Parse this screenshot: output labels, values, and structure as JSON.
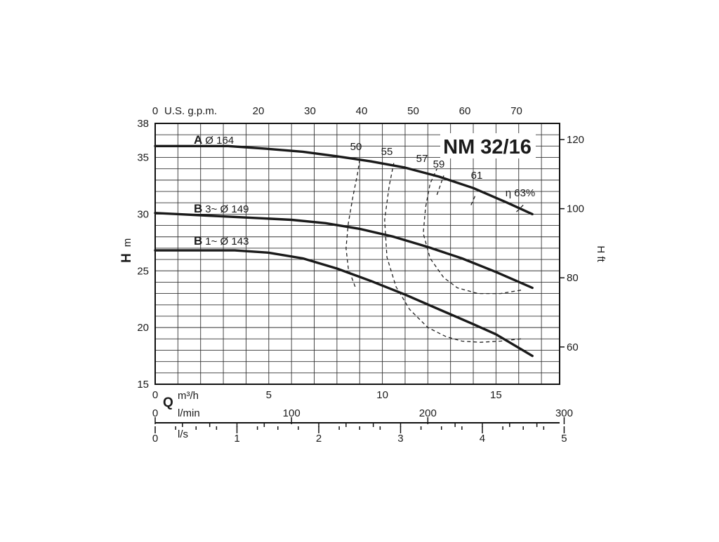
{
  "chart_data": {
    "type": "line",
    "title": "NM 32/16",
    "x": {
      "name": "Q",
      "unit": "m³/h",
      "ticks": [
        0,
        5,
        10,
        15
      ],
      "range": [
        0,
        17.8
      ]
    },
    "y": {
      "name": "H",
      "unit": "m",
      "ticks": [
        15,
        20,
        25,
        30,
        35,
        38
      ],
      "range": [
        15,
        38
      ]
    },
    "y_ft": {
      "name": "H",
      "unit": "ft",
      "ticks": [
        60,
        80,
        100,
        120
      ]
    },
    "x_gpm": {
      "label": "U.S. g.p.m.",
      "ticks": [
        0,
        20,
        30,
        40,
        50,
        60,
        70
      ]
    },
    "x_lmin": {
      "label": "l/min",
      "ticks": [
        0,
        100,
        200,
        300
      ]
    },
    "x_ls": {
      "label": "l/s",
      "ticks": [
        0,
        1,
        2,
        3,
        4,
        5
      ]
    },
    "grid": true,
    "series": [
      {
        "name": "A Ø 164",
        "code": "A",
        "label": "Ø 164",
        "points": [
          [
            0,
            36.0
          ],
          [
            2,
            36.0
          ],
          [
            3.2,
            36.0
          ],
          [
            5,
            35.75
          ],
          [
            6.5,
            35.5
          ],
          [
            8,
            35.1
          ],
          [
            9.5,
            34.65
          ],
          [
            11,
            34.1
          ],
          [
            12.5,
            33.3
          ],
          [
            14,
            32.3
          ],
          [
            15.5,
            31.0
          ],
          [
            16.6,
            30.0
          ]
        ]
      },
      {
        "name": "B 3~ Ø 149",
        "code": "B",
        "label": "3~ Ø 149",
        "points": [
          [
            0,
            30.1
          ],
          [
            2,
            29.9
          ],
          [
            4,
            29.7
          ],
          [
            6,
            29.5
          ],
          [
            7.5,
            29.2
          ],
          [
            9,
            28.7
          ],
          [
            10.5,
            28.0
          ],
          [
            12,
            27.1
          ],
          [
            13.5,
            26.1
          ],
          [
            15,
            24.9
          ],
          [
            16.6,
            23.5
          ]
        ]
      },
      {
        "name": "B 1~ Ø 143",
        "code": "B",
        "label": "1~ Ø 143",
        "points": [
          [
            0,
            26.8
          ],
          [
            2,
            26.8
          ],
          [
            3.5,
            26.8
          ],
          [
            5,
            26.6
          ],
          [
            6.5,
            26.1
          ],
          [
            8,
            25.2
          ],
          [
            9.5,
            24.1
          ],
          [
            11,
            22.9
          ],
          [
            12.5,
            21.6
          ],
          [
            14,
            20.3
          ],
          [
            15,
            19.4
          ],
          [
            16.6,
            17.5
          ]
        ]
      }
    ],
    "efficiency_curves": [
      {
        "label": "50",
        "points": [
          [
            8.8,
            23.6
          ],
          [
            8.5,
            25.2
          ],
          [
            8.4,
            27.0
          ],
          [
            8.5,
            29.2
          ],
          [
            8.7,
            31.5
          ],
          [
            8.9,
            33.5
          ],
          [
            9.0,
            34.8
          ]
        ]
      },
      {
        "label": "55",
        "points": [
          [
            16.1,
            19.0
          ],
          [
            15.2,
            18.8
          ],
          [
            14.3,
            18.7
          ],
          [
            13.5,
            18.8
          ],
          [
            12.8,
            19.2
          ],
          [
            12.0,
            20.0
          ],
          [
            11.2,
            21.6
          ],
          [
            10.6,
            23.6
          ],
          [
            10.2,
            26.2
          ],
          [
            10.1,
            29.5
          ],
          [
            10.3,
            32.5
          ],
          [
            10.5,
            34.5
          ]
        ]
      },
      {
        "label": "57",
        "points": [
          [
            16.1,
            23.3
          ],
          [
            15.2,
            23.0
          ],
          [
            14.2,
            23.0
          ],
          [
            13.3,
            23.5
          ],
          [
            12.7,
            24.4
          ],
          [
            12.1,
            26.1
          ],
          [
            11.8,
            28.3
          ],
          [
            11.9,
            30.6
          ],
          [
            12.1,
            32.7
          ],
          [
            12.4,
            34.0
          ]
        ]
      },
      {
        "label": "59",
        "points": [
          [
            12.4,
            31.7
          ],
          [
            12.7,
            33.4
          ]
        ]
      },
      {
        "label": "61",
        "points": [
          [
            13.9,
            30.8
          ],
          [
            14.1,
            31.7
          ]
        ]
      },
      {
        "label": "η 63%",
        "points": [
          [
            15.9,
            30.2
          ],
          [
            16.2,
            30.8
          ]
        ]
      }
    ]
  }
}
